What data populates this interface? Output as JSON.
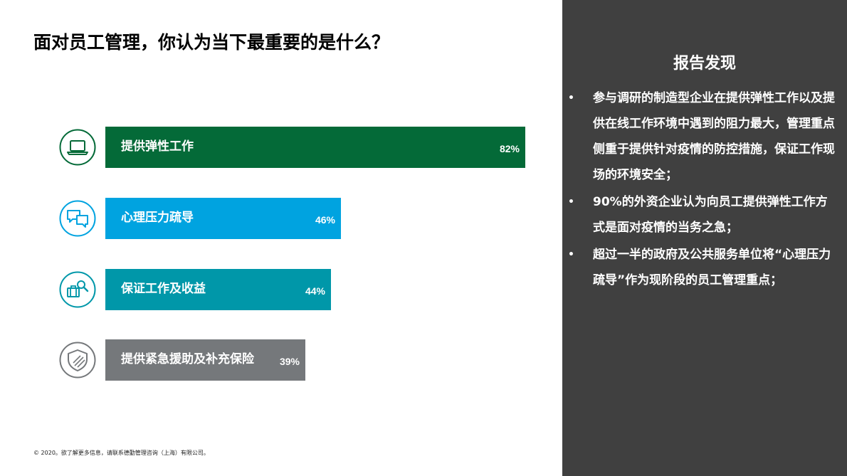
{
  "title": "面对员工管理，你认为当下最重要的是什么？",
  "footer": "© 2020。欲了解更多信息，请联系德勤管理咨询（上海）有限公司。",
  "panel": {
    "title": "报告发现",
    "findings": [
      "参与调研的制造型企业在提供弹性工作以及提供在线工作环境中遇到的阻力最大，管理重点侧重于提供针对疫情的防控措施，保证工作现场的环境安全；",
      "90%的外资企业认为向员工提供弹性工作方式是面对疫情的当务之急；",
      "超过一半的政府及公共服务单位将“心理压力疏导”作为现阶段的员工管理重点；"
    ]
  },
  "chart_data": {
    "type": "bar",
    "orientation": "horizontal",
    "categories": [
      "提供弹性工作",
      "心理压力疏导",
      "保证工作及收益",
      "提供紧急援助及补充保险"
    ],
    "values": [
      82,
      46,
      44,
      39
    ],
    "value_labels": [
      "82%",
      "46%",
      "44%",
      "39%"
    ],
    "colors": [
      "#046a38",
      "#00a3e0",
      "#0097a9",
      "#75787b"
    ],
    "icons": [
      "laptop-icon",
      "chat-bubbles-icon",
      "briefcase-search-icon",
      "shield-icon"
    ],
    "xlim": [
      0,
      100
    ]
  }
}
